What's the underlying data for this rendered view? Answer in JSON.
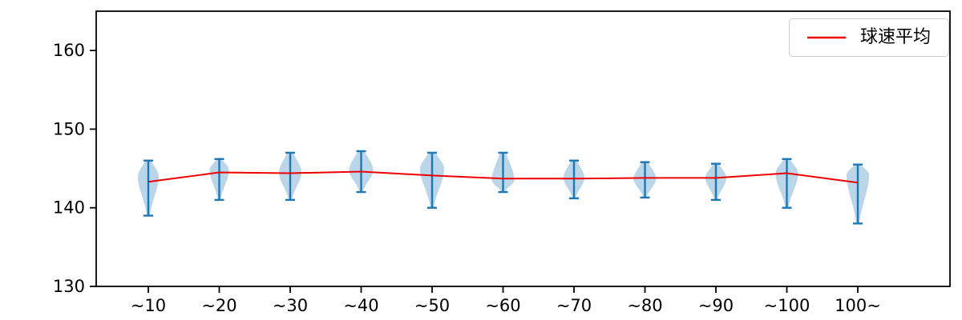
{
  "chart_data": {
    "type": "violin",
    "title": "",
    "xlabel": "",
    "ylabel": "",
    "categories": [
      "~10",
      "~20",
      "~30",
      "~40",
      "~50",
      "~60",
      "~70",
      "~80",
      "~90",
      "~100",
      "100~"
    ],
    "ylim": [
      130,
      165
    ],
    "yticks": [
      130,
      140,
      150,
      160
    ],
    "grid": false,
    "legend": {
      "label": "球速平均",
      "position": "upper right"
    },
    "series": [
      {
        "name": "球速平均",
        "type": "line",
        "color": "#ee0000",
        "values": [
          143.3,
          144.5,
          144.4,
          144.6,
          144.1,
          143.7,
          143.7,
          143.8,
          143.8,
          144.4,
          143.2
        ]
      }
    ],
    "violins": [
      {
        "category": "~10",
        "min": 139.0,
        "max": 146.0,
        "mean": 143.3,
        "peak": 144.0,
        "hw": 13
      },
      {
        "category": "~20",
        "min": 141.0,
        "max": 146.2,
        "mean": 144.5,
        "peak": 144.8,
        "hw": 12
      },
      {
        "category": "~30",
        "min": 141.0,
        "max": 147.0,
        "mean": 144.4,
        "peak": 144.5,
        "hw": 14
      },
      {
        "category": "~40",
        "min": 142.0,
        "max": 147.2,
        "mean": 144.6,
        "peak": 144.8,
        "hw": 15
      },
      {
        "category": "~50",
        "min": 140.0,
        "max": 147.0,
        "mean": 144.1,
        "peak": 145.0,
        "hw": 15
      },
      {
        "category": "~60",
        "min": 142.0,
        "max": 147.0,
        "mean": 143.7,
        "peak": 143.5,
        "hw": 14
      },
      {
        "category": "~70",
        "min": 141.2,
        "max": 146.0,
        "mean": 143.7,
        "peak": 143.8,
        "hw": 13
      },
      {
        "category": "~80",
        "min": 141.3,
        "max": 145.8,
        "mean": 143.8,
        "peak": 143.7,
        "hw": 14
      },
      {
        "category": "~90",
        "min": 141.0,
        "max": 145.6,
        "mean": 143.8,
        "peak": 143.8,
        "hw": 13
      },
      {
        "category": "~100",
        "min": 140.0,
        "max": 146.2,
        "mean": 144.4,
        "peak": 144.4,
        "hw": 14
      },
      {
        "category": "100~",
        "min": 138.0,
        "max": 145.5,
        "mean": 143.2,
        "peak": 144.2,
        "hw": 14
      }
    ],
    "colors": {
      "violin_fill": "#bcd6e9",
      "violin_line": "#1f77b4",
      "mean_line": "#ee0000",
      "axis": "#000000",
      "legend_border": "#cccccc"
    }
  }
}
